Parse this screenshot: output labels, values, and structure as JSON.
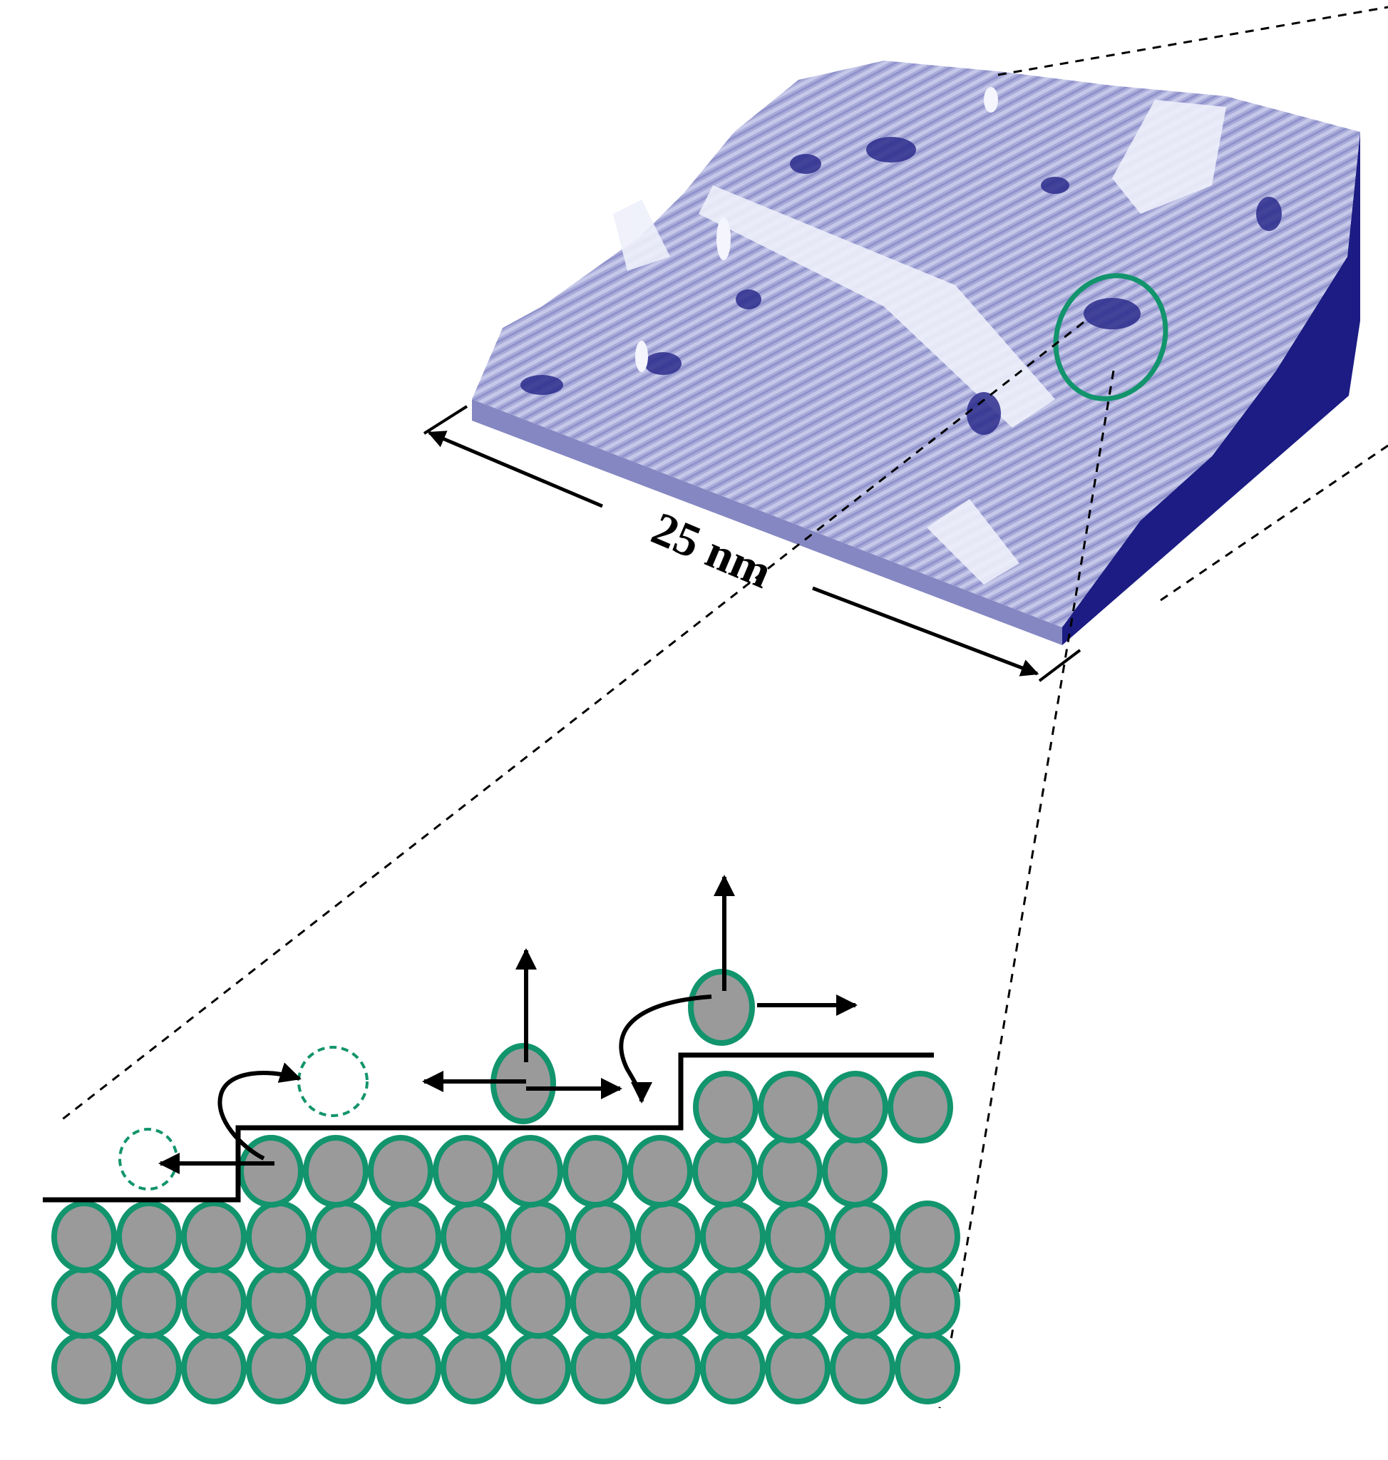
{
  "scale_bar": {
    "label": "25 nm"
  },
  "colors": {
    "surface_top": "#a9abd8",
    "surface_highlight": "#eef0fb",
    "surface_shadow": "#2c2c8c",
    "front_face": "#8587c2",
    "side_face": "#1c1c84",
    "atom_fill": "#9a9a9a",
    "atom_outline": "#12946c",
    "line": "#000000"
  },
  "icons": {
    "arrow": "arrowhead",
    "highlight": "ellipse-outline"
  }
}
